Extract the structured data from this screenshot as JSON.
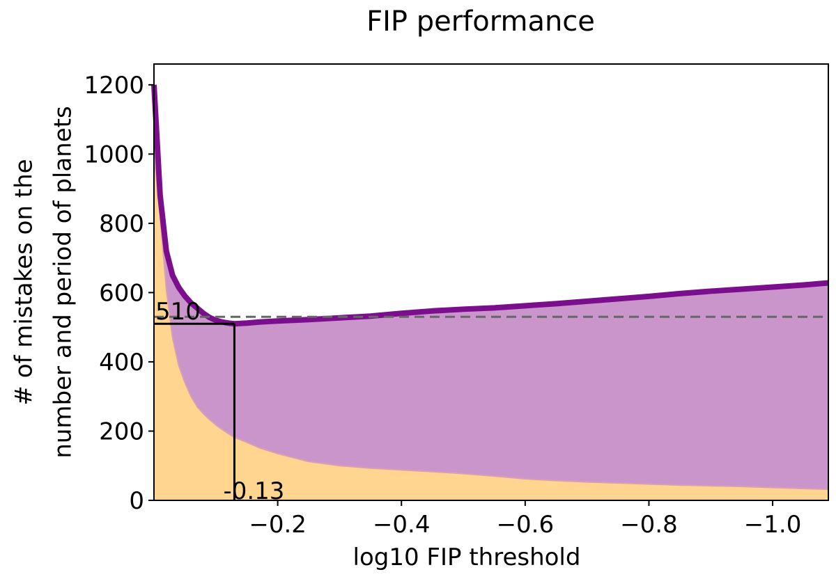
{
  "chart_data": {
    "type": "area",
    "title": "FIP performance",
    "xlabel": "log10 FIP threshold",
    "ylabel": [
      "# of mistakes on the",
      "number and period of planets"
    ],
    "xlim": [
      0.0,
      -1.09
    ],
    "ylim": [
      0,
      1260
    ],
    "xticks": [
      -0.2,
      -0.4,
      -0.6,
      -0.8,
      -1.0
    ],
    "xtick_labels": [
      "−0.2",
      "−0.4",
      "−0.6",
      "−0.8",
      "−1.0"
    ],
    "yticks": [
      0,
      200,
      400,
      600,
      800,
      1000,
      1200
    ],
    "ytick_labels": [
      "0",
      "200",
      "400",
      "600",
      "800",
      "1000",
      "1200"
    ],
    "grid": false,
    "x": [
      0.0,
      -0.01,
      -0.02,
      -0.03,
      -0.04,
      -0.05,
      -0.06,
      -0.07,
      -0.08,
      -0.09,
      -0.1,
      -0.11,
      -0.12,
      -0.13,
      -0.15,
      -0.17,
      -0.2,
      -0.25,
      -0.3,
      -0.35,
      -0.4,
      -0.45,
      -0.5,
      -0.55,
      -0.6,
      -0.65,
      -0.7,
      -0.75,
      -0.8,
      -0.85,
      -0.9,
      -0.95,
      -1.0,
      -1.05,
      -1.09
    ],
    "series": [
      {
        "values": [
          1200,
          880,
          720,
          650,
          615,
          590,
          570,
          555,
          540,
          528,
          520,
          515,
          512,
          510,
          512,
          515,
          518,
          522,
          527,
          532,
          540,
          547,
          552,
          556,
          562,
          568,
          575,
          582,
          589,
          597,
          604,
          610,
          616,
          622,
          628
        ],
        "color": "#7b0e8c"
      },
      {
        "values": [
          1000,
          820,
          610,
          470,
          390,
          340,
          300,
          270,
          250,
          233,
          218,
          205,
          193,
          182,
          168,
          152,
          135,
          112,
          100,
          93,
          88,
          83,
          77,
          70,
          62,
          57,
          53,
          50,
          47,
          44,
          42,
          40,
          37,
          34,
          32
        ],
        "color": "#ffd58f"
      }
    ],
    "fill_between_color": "#c995cb",
    "reference_line": {
      "y": 530,
      "style": "dashed",
      "color": "#666666"
    },
    "annotations": [
      {
        "text": "510",
        "x": -0.13,
        "y": 510,
        "kind": "horizontal-marker"
      },
      {
        "text": "-0.13",
        "x": -0.13,
        "y": 510,
        "kind": "vertical-marker"
      }
    ]
  }
}
